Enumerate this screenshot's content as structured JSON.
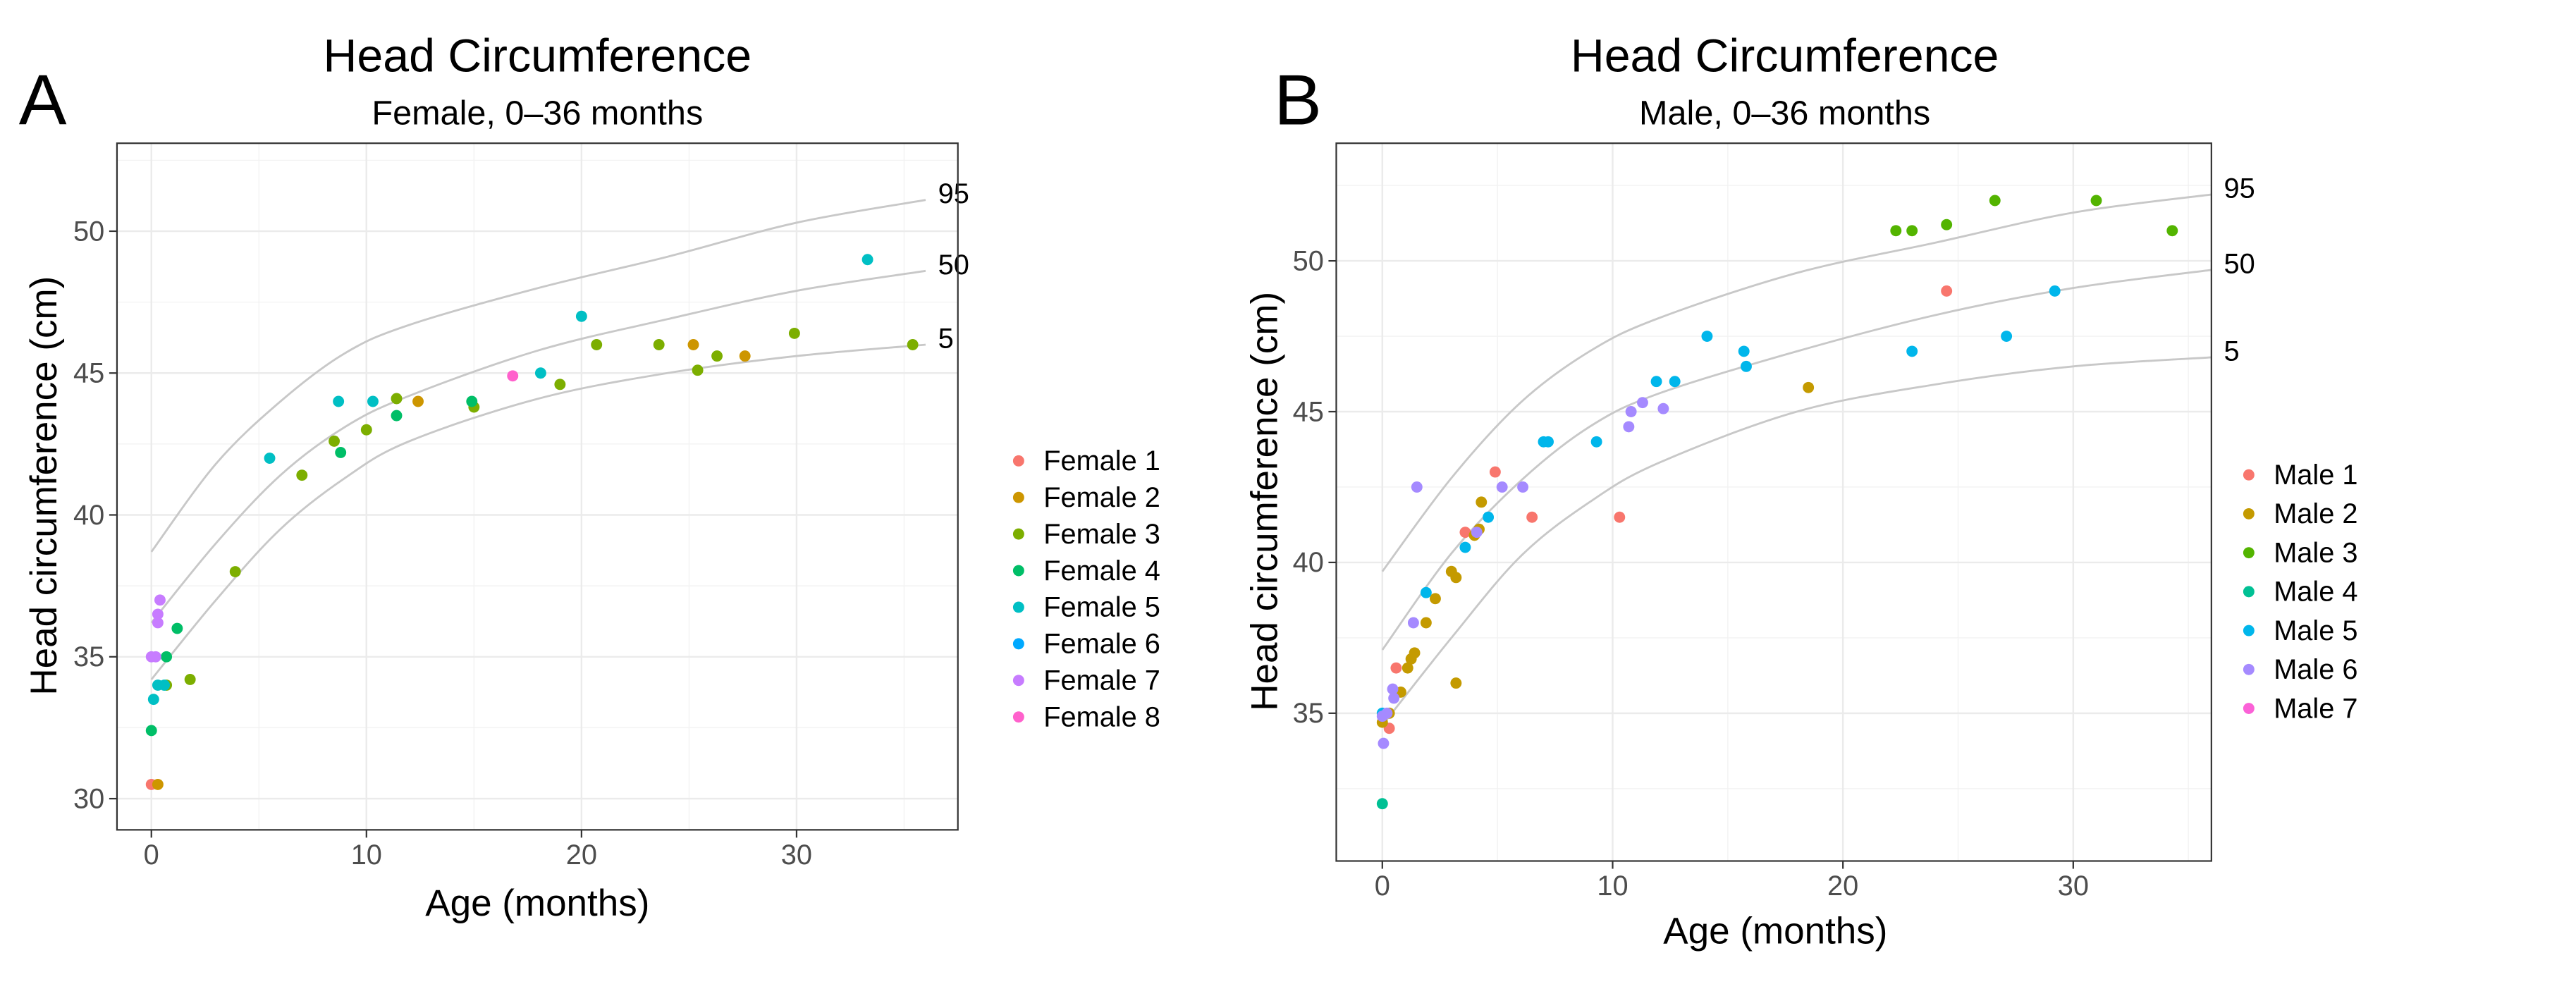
{
  "chart_data": [
    {
      "type": "scatter",
      "panel_label": "A",
      "title": "Head Circumference",
      "subtitle": "Female, 0–36 months",
      "xlabel": "Age (months)",
      "ylabel": "Head circumference (cm)",
      "xlim": [
        -1.6,
        37.5
      ],
      "ylim": [
        28.9,
        53.1
      ],
      "xticks": [
        0,
        10,
        20,
        30
      ],
      "yticks": [
        30,
        35,
        40,
        45,
        50
      ],
      "grid": true,
      "legend_position": "right",
      "percentile_curves": [
        {
          "label": "95",
          "x": [
            0,
            3,
            6,
            9,
            12,
            18,
            24,
            30,
            36
          ],
          "y": [
            38.7,
            41.8,
            44,
            45.7,
            46.7,
            48,
            49.1,
            50.3,
            51.1
          ]
        },
        {
          "label": "50",
          "x": [
            0,
            3,
            6,
            9,
            12,
            18,
            24,
            30,
            36
          ],
          "y": [
            36.2,
            39,
            41.4,
            43.1,
            44.2,
            45.8,
            46.9,
            47.9,
            48.6
          ]
        },
        {
          "label": "5",
          "x": [
            0,
            3,
            6,
            9,
            12,
            18,
            24,
            30,
            36
          ],
          "y": [
            34.2,
            37,
            39.5,
            41.3,
            42.6,
            44.1,
            45,
            45.6,
            46
          ]
        }
      ],
      "series": [
        {
          "name": "Female 1",
          "color": "#F8766D",
          "x": [
            0
          ],
          "y": [
            30.5
          ]
        },
        {
          "name": "Female 2",
          "color": "#CD9600",
          "x": [
            0.3,
            12.4,
            25.2,
            27.6
          ],
          "y": [
            30.5,
            44,
            46,
            45.6
          ]
        },
        {
          "name": "Female 3",
          "color": "#7CAE00",
          "x": [
            0.7,
            1.8,
            3.9,
            7,
            8.5,
            10,
            11.4,
            15,
            19,
            20.7,
            23.6,
            25.4,
            26.3,
            29.9,
            35.4
          ],
          "y": [
            34,
            34.2,
            38,
            41.4,
            42.6,
            43,
            44.1,
            43.8,
            44.6,
            46,
            46,
            45.1,
            45.6,
            46.4,
            46
          ]
        },
        {
          "name": "Female 4",
          "color": "#00BE67",
          "x": [
            0,
            0.7,
            1.2,
            8.8,
            11.4,
            14.9
          ],
          "y": [
            32.4,
            35,
            36,
            42.2,
            43.5,
            44
          ]
        },
        {
          "name": "Female 5",
          "color": "#00BFC4",
          "x": [
            0.1,
            0.3,
            0.6,
            5.5,
            8.7,
            10.3,
            18.1,
            20,
            33.3
          ],
          "y": [
            33.5,
            34,
            34,
            42,
            44,
            44,
            45,
            47,
            49
          ]
        },
        {
          "name": "Female 6",
          "color": "#00A9FF",
          "x": [],
          "y": []
        },
        {
          "name": "Female 7",
          "color": "#C77CFF",
          "x": [
            0,
            0.2,
            0.3,
            0.3,
            0.4
          ],
          "y": [
            35,
            35,
            36.2,
            36.5,
            37
          ]
        },
        {
          "name": "Female 8",
          "color": "#FF61CC",
          "x": [
            16.8
          ],
          "y": [
            44.9
          ]
        }
      ]
    },
    {
      "type": "scatter",
      "panel_label": "B",
      "title": "Head Circumference",
      "subtitle": "Male, 0–36 months",
      "xlabel": "Age (months)",
      "ylabel": "Head circumference (cm)",
      "xlim": [
        -2,
        36
      ],
      "ylim": [
        30.1,
        53.9
      ],
      "xticks": [
        0,
        10,
        20,
        30
      ],
      "yticks": [
        35,
        40,
        45,
        50
      ],
      "grid": true,
      "legend_position": "right",
      "percentile_curves": [
        {
          "label": "95",
          "x": [
            0,
            3,
            6,
            9,
            12,
            18,
            24,
            30,
            36
          ],
          "y": [
            39.7,
            42.8,
            45.3,
            47,
            48.1,
            49.6,
            50.6,
            51.6,
            52.2
          ]
        },
        {
          "label": "50",
          "x": [
            0,
            3,
            6,
            9,
            12,
            18,
            24,
            30,
            36
          ],
          "y": [
            37.1,
            40.3,
            42.7,
            44.5,
            45.6,
            47,
            48.2,
            49.1,
            49.7
          ]
        },
        {
          "label": "5",
          "x": [
            0,
            3,
            6,
            9,
            12,
            18,
            24,
            30,
            36
          ],
          "y": [
            34.6,
            37.5,
            40.2,
            42,
            43.3,
            45,
            45.9,
            46.5,
            46.8
          ]
        }
      ],
      "series": [
        {
          "name": "Male 1",
          "color": "#F8766D",
          "x": [
            0.3,
            0.6,
            3.6,
            4.9,
            6.5,
            10.3,
            24.5
          ],
          "y": [
            34.5,
            36.5,
            41,
            43,
            41.5,
            41.5,
            49
          ]
        },
        {
          "name": "Male 2",
          "color": "#C49A00",
          "x": [
            0,
            0.3,
            0.8,
            1.1,
            1.25,
            1.4,
            1.9,
            2.3,
            3,
            3.2,
            3.2,
            4,
            4.2,
            4.3,
            18.5
          ],
          "y": [
            34.7,
            35,
            35.7,
            36.5,
            36.8,
            37,
            38,
            38.8,
            39.7,
            39.5,
            36,
            40.9,
            41.1,
            42,
            45.8
          ]
        },
        {
          "name": "Male 3",
          "color": "#53B400",
          "x": [
            22.3,
            23,
            24.5,
            26.6,
            31,
            34.3
          ],
          "y": [
            51,
            51,
            51.2,
            52,
            52,
            51
          ]
        },
        {
          "name": "Male 4",
          "color": "#00C094",
          "x": [
            0
          ],
          "y": [
            32
          ]
        },
        {
          "name": "Male 5",
          "color": "#00B6EB",
          "x": [
            0,
            1.9,
            3.6,
            4.6,
            7,
            7.2,
            9.3,
            11.9,
            12.7,
            14.1,
            15.7,
            15.8,
            23,
            27.1,
            29.2
          ],
          "y": [
            35,
            39,
            40.5,
            41.5,
            44,
            44,
            44,
            46,
            46,
            47.5,
            47,
            46.5,
            47,
            47.5,
            49
          ]
        },
        {
          "name": "Male 6",
          "color": "#A58AFF",
          "x": [
            0.05,
            0,
            0.2,
            0.45,
            0.5,
            1.35,
            1.5,
            4.1,
            5.2,
            6.1,
            10.7,
            10.8,
            11.3,
            12.2
          ],
          "y": [
            34,
            34.9,
            35,
            35.8,
            35.5,
            38,
            42.5,
            41,
            42.5,
            42.5,
            44.5,
            45,
            45.3,
            45.1
          ]
        },
        {
          "name": "Male 7",
          "color": "#FB61D7",
          "x": [],
          "y": []
        }
      ]
    }
  ]
}
